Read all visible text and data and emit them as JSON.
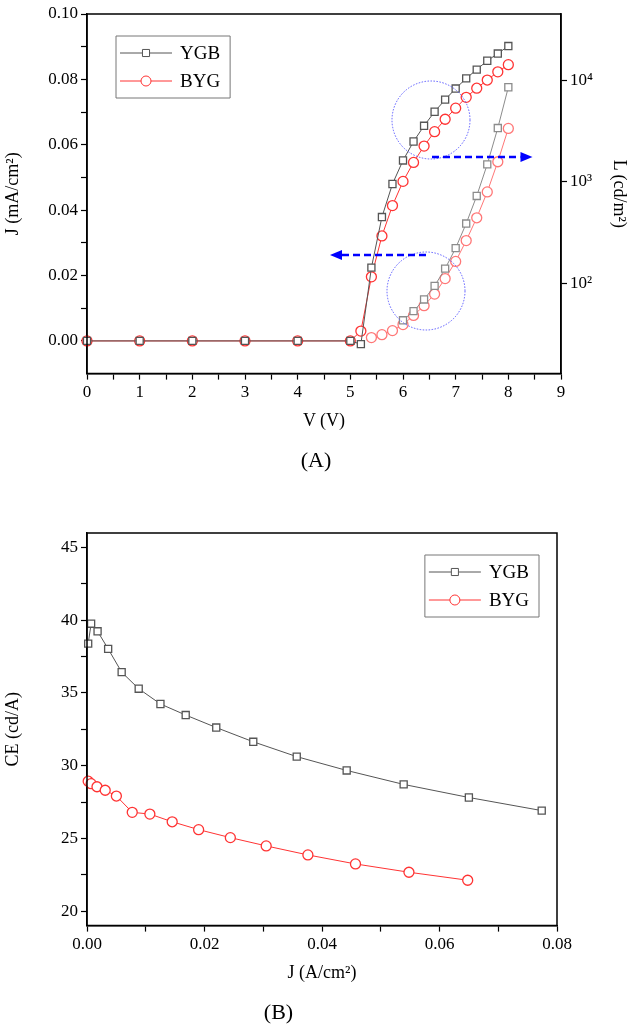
{
  "chart_data": [
    {
      "type": "line",
      "title": "(A)",
      "xlabel": "V (V)",
      "ylabel": "J (mA/cm²)",
      "y2label": "L (cd/m²)",
      "legend": "top left",
      "grid": false,
      "log": "y2",
      "xlim": [
        0,
        9
      ],
      "xticks": [
        0,
        {
          "value": 0.5,
          "label": null
        },
        1,
        {
          "value": 1.5,
          "label": null
        },
        2,
        {
          "value": 2.5,
          "label": null
        },
        3,
        {
          "value": 3.5,
          "label": null
        },
        4,
        {
          "value": 4.5,
          "label": null
        },
        5,
        {
          "value": 5.5,
          "label": null
        },
        6,
        {
          "value": 6.5,
          "label": null
        },
        7,
        {
          "value": 7.5,
          "label": null
        },
        8,
        {
          "value": 8.5,
          "label": null
        },
        9
      ],
      "ylim": [
        -0.01,
        0.1
      ],
      "yticks": [
        {
          "value": 0,
          "label": "0.00"
        },
        {
          "value": 0.01,
          "label": null
        },
        0.02,
        {
          "value": 0.03,
          "label": null
        },
        0.04,
        {
          "value": 0.05,
          "label": null
        },
        0.06,
        {
          "value": 0.07,
          "label": null
        },
        0.08,
        {
          "value": 0.09,
          "label": null
        },
        {
          "value": 0.1,
          "label": "0.10"
        }
      ],
      "y2lim": [
        12.8,
        45400
      ],
      "y2ticks": [
        {
          "value": 100,
          "label": "10²"
        },
        {
          "value": 1000,
          "label": "10³"
        },
        {
          "value": 10000,
          "label": "10⁴"
        }
      ],
      "series": [
        {
          "name": "YGB",
          "color": "#555555",
          "marker": "square",
          "x": [
            0,
            1,
            2,
            3,
            4,
            5,
            5.2,
            5.4,
            5.6,
            5.8,
            6,
            6.2,
            6.4,
            6.6,
            6.8,
            7,
            7.2,
            7.4,
            7.6,
            7.8,
            8
          ],
          "values": [
            0,
            0,
            0,
            0,
            0,
            0,
            -0.001,
            0.0224,
            0.0379,
            0.048,
            0.0552,
            0.061,
            0.0658,
            0.0701,
            0.0738,
            0.0772,
            0.0803,
            0.083,
            0.0857,
            0.0879,
            0.0902
          ]
        },
        {
          "name": "BYG",
          "color": "#ff3333",
          "marker": "circle",
          "x": [
            0,
            1,
            2,
            3,
            4,
            5,
            5.2,
            5.4,
            5.6,
            5.8,
            6,
            6.2,
            6.4,
            6.6,
            6.8,
            7,
            7.2,
            7.4,
            7.6,
            7.8,
            8
          ],
          "values": [
            0,
            0,
            0,
            0,
            0,
            0,
            0.003,
            0.0196,
            0.0321,
            0.0414,
            0.0488,
            0.0546,
            0.0596,
            0.064,
            0.0678,
            0.0712,
            0.0745,
            0.0773,
            0.0798,
            0.0823,
            0.0845
          ]
        },
        {
          "color": "#8c8c8c",
          "marker": "square",
          "axis": "y2",
          "x": [
            6,
            6.2,
            6.4,
            6.6,
            6.8,
            7,
            7.2,
            7.4,
            7.6,
            7.8,
            8
          ],
          "values": [
            43,
            53,
            69,
            94,
            139,
            222,
            388,
            726,
            1490,
            3400,
            8590
          ]
        },
        {
          "color": "#ff7777",
          "marker": "circle",
          "axis": "y2",
          "x": [
            5.4,
            5.6,
            5.8,
            6,
            6.2,
            6.4,
            6.6,
            6.8,
            7,
            7.2,
            7.4,
            7.6,
            7.8,
            8
          ],
          "values": [
            29,
            31,
            34,
            39,
            48,
            60,
            78,
            111,
            164,
            263,
            442,
            796,
            1580,
            3370
          ]
        }
      ]
    },
    {
      "type": "line",
      "title": "(B)",
      "xlabel": "J (A/cm²)",
      "ylabel": "CE (cd/A)",
      "legend": "top right",
      "grid": false,
      "xlim": [
        0,
        0.08
      ],
      "xticks": [
        {
          "value": 0,
          "label": "0.00"
        },
        {
          "value": 0.01,
          "label": null
        },
        0.02,
        {
          "value": 0.03,
          "label": null
        },
        0.04,
        {
          "value": 0.05,
          "label": null
        },
        0.06,
        {
          "value": 0.07,
          "label": null
        },
        0.08
      ],
      "ylim": [
        19,
        46
      ],
      "yticks": [
        20,
        {
          "value": 22.5,
          "label": null
        },
        25,
        {
          "value": 27.5,
          "label": null
        },
        30,
        {
          "value": 32.5,
          "label": null
        },
        35,
        {
          "value": 37.5,
          "label": null
        },
        40,
        {
          "value": 42.5,
          "label": null
        },
        45
      ],
      "series": [
        {
          "name": "YGB",
          "color": "#555555",
          "marker": "square",
          "x": [
            0.0002,
            0.0007,
            0.0018,
            0.0036,
            0.0059,
            0.0088,
            0.0125,
            0.0168,
            0.022,
            0.0283,
            0.0357,
            0.0442,
            0.0539,
            0.065,
            0.0774
          ],
          "values": [
            38.39,
            39.76,
            39.24,
            38.03,
            36.43,
            35.29,
            34.24,
            33.48,
            32.62,
            31.64,
            30.62,
            29.67,
            28.71,
            27.81,
            26.91
          ]
        },
        {
          "name": "BYG",
          "color": "#ff3333",
          "marker": "circle",
          "x": [
            0.0002,
            0.0007,
            0.0017,
            0.0031,
            0.005,
            0.0077,
            0.0107,
            0.0145,
            0.019,
            0.0244,
            0.0305,
            0.0376,
            0.0457,
            0.0548,
            0.0648
          ],
          "values": [
            28.93,
            28.76,
            28.55,
            28.31,
            27.91,
            26.79,
            26.67,
            26.14,
            25.6,
            25.05,
            24.48,
            23.86,
            23.24,
            22.67,
            22.12
          ]
        }
      ]
    }
  ]
}
